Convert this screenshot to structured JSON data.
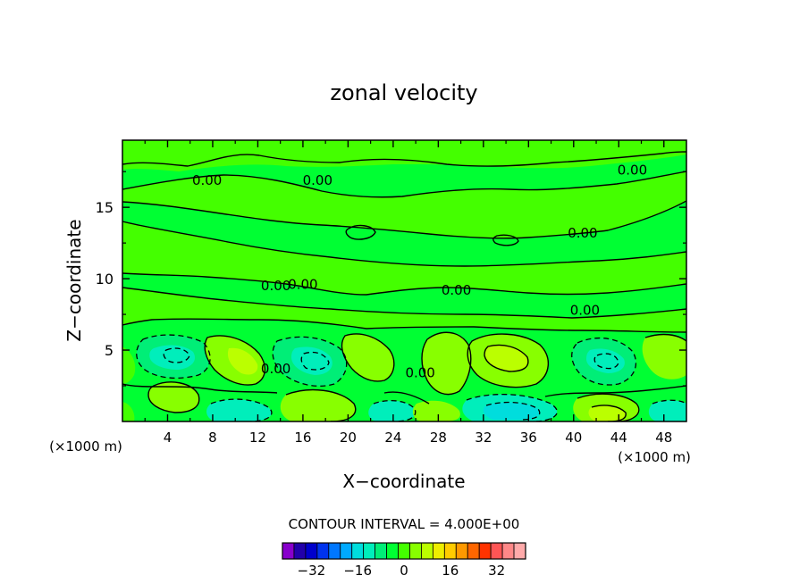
{
  "chart_data": {
    "type": "contour",
    "title": "zonal velocity",
    "xlabel": "X−coordinate",
    "ylabel": "Z−coordinate",
    "x_unit_left": "(×1000 m)",
    "x_unit_right": "(×1000 m)",
    "xlim": [
      0,
      50
    ],
    "ylim": [
      0,
      19.7
    ],
    "x_ticks": [
      4,
      8,
      12,
      16,
      20,
      24,
      28,
      32,
      36,
      40,
      44,
      48
    ],
    "y_ticks": [
      5,
      10,
      15
    ],
    "contour_interval_text": "CONTOUR INTERVAL =  4.000E+00",
    "contour_labels": [
      {
        "text": "0.00",
        "x": 7.5,
        "y": 16.9
      },
      {
        "text": "0.00",
        "x": 17.3,
        "y": 16.9
      },
      {
        "text": "0.00",
        "x": 45.2,
        "y": 17.6
      },
      {
        "text": "0.00",
        "x": 40.8,
        "y": 13.2
      },
      {
        "text": "0.00",
        "x": 13.6,
        "y": 9.5
      },
      {
        "text": "0.00",
        "x": 16.0,
        "y": 9.6
      },
      {
        "text": "0.00",
        "x": 29.6,
        "y": 9.2
      },
      {
        "text": "0.00",
        "x": 41.0,
        "y": 7.8
      },
      {
        "text": "0.00",
        "x": 13.6,
        "y": 3.7
      },
      {
        "text": "0.00",
        "x": 26.4,
        "y": 3.4
      }
    ],
    "colorbar": {
      "colors": [
        "#8800cc",
        "#2200aa",
        "#0000cc",
        "#0033ee",
        "#0077ff",
        "#00aaff",
        "#00dddd",
        "#00eebb",
        "#00ee77",
        "#00ff33",
        "#44ff00",
        "#88ff00",
        "#bbff00",
        "#eeee00",
        "#ffcc00",
        "#ff9900",
        "#ff6600",
        "#ff3300",
        "#ff5555",
        "#ff8888",
        "#ffaaaa"
      ],
      "tick_labels": [
        "−32",
        "−16",
        "0",
        "16",
        "32"
      ]
    }
  }
}
